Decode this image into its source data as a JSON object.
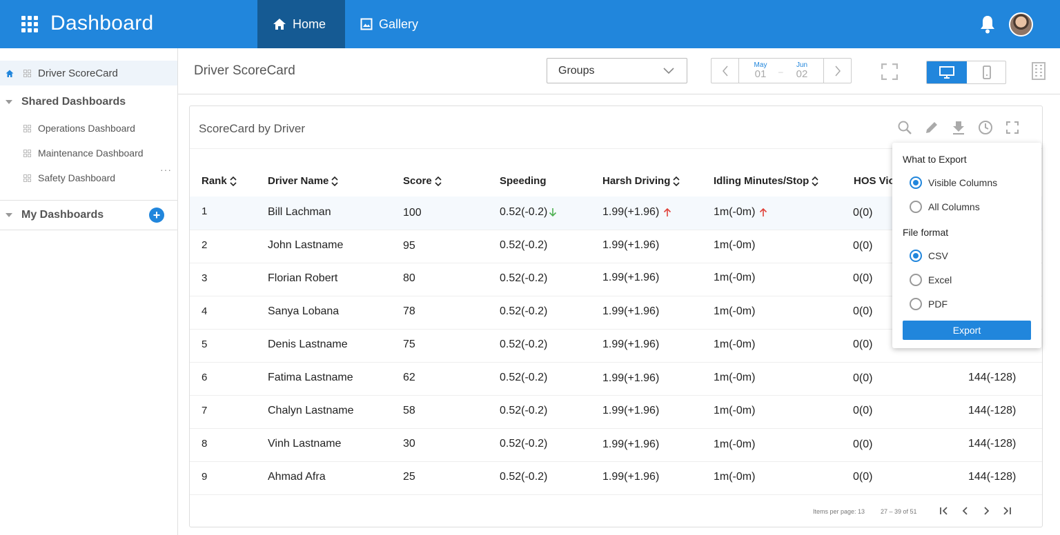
{
  "header": {
    "app_title": "Dashboard",
    "tabs": [
      {
        "label": "Home"
      },
      {
        "label": "Gallery"
      }
    ]
  },
  "sidebar": {
    "active_item": "Driver ScoreCard",
    "shared_title": "Shared Dashboards",
    "shared_items": [
      "Operations Dashboard",
      "Maintenance Dashboard",
      "Safety Dashboard"
    ],
    "my_title": "My Dashboards"
  },
  "page": {
    "title": "Driver ScoreCard",
    "groups_value": "Groups",
    "date_start": {
      "month": "May",
      "day": "01"
    },
    "date_end": {
      "month": "Jun",
      "day": "02"
    }
  },
  "card": {
    "title": "ScoreCard by Driver"
  },
  "table": {
    "columns": [
      "Rank",
      "Driver Name",
      "Score",
      "Speeding",
      "Harsh Driving",
      "Idling Minutes/Stop",
      "HOS Vio"
    ],
    "rows": [
      {
        "rank": "1",
        "name": "Bill Lachman",
        "score": "100",
        "speeding": "0.52(-0.2)",
        "harsh": "1.99(+1.96)",
        "idling": "1m(-0m)",
        "hos": "0(0)",
        "last": ""
      },
      {
        "rank": "2",
        "name": "John Lastname",
        "score": "95",
        "speeding": "0.52(-0.2)",
        "harsh": "1.99(+1.96)",
        "idling": "1m(-0m)",
        "hos": "0(0)",
        "last": ""
      },
      {
        "rank": "3",
        "name": "Florian Robert",
        "score": "80",
        "speeding": "0.52(-0.2)",
        "harsh": "1.99(+1.96)",
        "idling": "1m(-0m)",
        "hos": "0(0)",
        "last": ""
      },
      {
        "rank": "4",
        "name": "Sanya Lobana",
        "score": "78",
        "speeding": "0.52(-0.2)",
        "harsh": "1.99(+1.96)",
        "idling": "1m(-0m)",
        "hos": "0(0)",
        "last": ""
      },
      {
        "rank": "5",
        "name": "Denis Lastname",
        "score": "75",
        "speeding": "0.52(-0.2)",
        "harsh": "1.99(+1.96)",
        "idling": "1m(-0m)",
        "hos": "0(0)",
        "last": ""
      },
      {
        "rank": "6",
        "name": "Fatima Lastname",
        "score": "62",
        "speeding": "0.52(-0.2)",
        "harsh": "1.99(+1.96)",
        "idling": "1m(-0m)",
        "hos": "0(0)",
        "last": "144(-128)"
      },
      {
        "rank": "7",
        "name": "Chalyn Lastname",
        "score": "58",
        "speeding": "0.52(-0.2)",
        "harsh": "1.99(+1.96)",
        "idling": "1m(-0m)",
        "hos": "0(0)",
        "last": "144(-128)"
      },
      {
        "rank": "8",
        "name": "Vinh Lastname",
        "score": "30",
        "speeding": "0.52(-0.2)",
        "harsh": "1.99(+1.96)",
        "idling": "1m(-0m)",
        "hos": "0(0)",
        "last": "144(-128)"
      },
      {
        "rank": "9",
        "name": "Ahmad Afra",
        "score": "25",
        "speeding": "0.52(-0.2)",
        "harsh": "1.99(+1.96)",
        "idling": "1m(-0m)",
        "hos": "0(0)",
        "last": "144(-128)"
      }
    ],
    "trend_up_color": "#e0413a",
    "trend_down_color": "#4caf50"
  },
  "pager": {
    "items_per_page": "Items per page: 13",
    "range": "27 – 39 of 51"
  },
  "export_popup": {
    "what_title": "What to Export",
    "what_options": [
      "Visible Columns",
      "All Columns"
    ],
    "format_title": "File format",
    "format_options": [
      "CSV",
      "Excel",
      "PDF"
    ],
    "button": "Export"
  },
  "colors": {
    "primary": "#2186dc",
    "primary_dark": "#155a93"
  }
}
